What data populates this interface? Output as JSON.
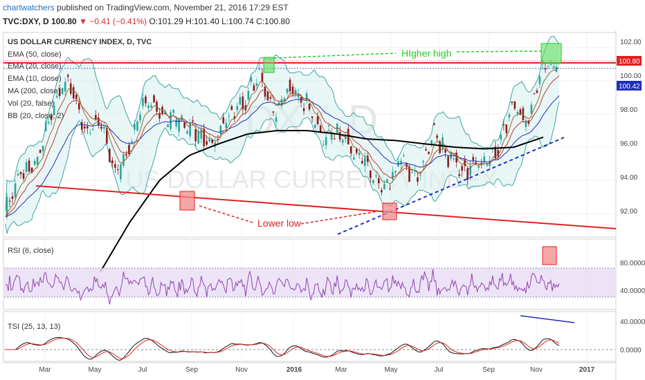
{
  "header": {
    "author": "chartwatchers",
    "published_text": " published on TradingView.com, November 21, 2016 17:29 EST",
    "symbol": "TVC:DXY, D",
    "last": "100.80",
    "down_arrow": "▼",
    "change": "−0.41 (−0.41%)",
    "ohlc": "O:101.29 H:101.40 L:100.74 C:100.80"
  },
  "main_pane": {
    "title": "US DOLLAR CURRENCY INDEX, D, TVC",
    "legend": [
      "EMA (50, close)",
      "EMA (20, close)",
      "EMA (10, close)",
      "MA (200, close)",
      "Vol (20, false)",
      "BB (20, close, 2)"
    ],
    "watermark_big": "DXY, D",
    "watermark_small": "US DOLLAR CURRENCY INDEX",
    "price_labels": [
      "102.00",
      "100.00",
      "98.00",
      "96.00",
      "94.00",
      "92.00"
    ],
    "last_price_tag": "100.80",
    "ema_tag": "100.42",
    "annotation_high": "HIgher high",
    "annotation_low": "Lower low"
  },
  "rsi_pane": {
    "title": "RSI (6, close)",
    "labels": [
      "80.0000",
      "40.0000"
    ]
  },
  "tsi_pane": {
    "title": "TSI (25, 13, 13)",
    "labels": [
      "40.0000",
      "0.0000"
    ]
  },
  "time_axis": [
    "Mar",
    "May",
    "Jul",
    "Sep",
    "Nov",
    "2016",
    "Mar",
    "May",
    "Jul",
    "Sep",
    "Nov",
    "2017"
  ],
  "colors": {
    "up": "#26a69a",
    "down": "#8b1a1a",
    "ma200": "#000000",
    "ema50": "#1f2dbf",
    "ema20": "#c0392b",
    "ema10": "#8e6b3a",
    "bb": "#3aa6a0",
    "rsi": "#8e44ad",
    "annotation_green": "#22cc22",
    "annotation_red": "#e02020",
    "trend_blue": "#1f2dbf"
  },
  "chart_data": [
    {
      "type": "line",
      "title": "US DOLLAR CURRENCY INDEX, D, TVC",
      "y_axis_range": [
        90.6,
        102.9
      ],
      "y_ticks": [
        92,
        94,
        96,
        98,
        100,
        102
      ],
      "x_ticks": [
        "Mar",
        "May",
        "Jul",
        "Sep",
        "Nov",
        "2016",
        "Mar",
        "May",
        "Jul",
        "Sep",
        "Nov",
        "2017"
      ],
      "series": [
        {
          "name": "DXY",
          "values": [
            92.2,
            94.5,
            95.0,
            98.5,
            100.2,
            97.0,
            97.5,
            94.3,
            96.6,
            99.1,
            97.8,
            97.5,
            97.0,
            95.9,
            97.8,
            98.5,
            100.5,
            98.0,
            99.5,
            98.8,
            96.5,
            97.0,
            95.9,
            94.5,
            93.2,
            95.3,
            93.9,
            96.9,
            95.5,
            94.6,
            95.0,
            95.7,
            98.4,
            97.5,
            101.2,
            100.8
          ]
        },
        {
          "name": "MA (200, close)",
          "values": [
            88.5,
            91.5,
            94.0,
            95.5,
            96.2,
            96.8,
            97.0,
            97.0,
            96.8,
            96.5,
            96.4,
            96.2,
            96.0,
            95.9,
            96.0,
            96.6
          ]
        }
      ],
      "last_price": 100.8,
      "ema_value": 100.42,
      "annotations": [
        "HIgher high",
        "Lower low"
      ]
    },
    {
      "type": "line",
      "title": "RSI (6, close)",
      "y_ticks": [
        40,
        80
      ],
      "band": [
        30,
        70
      ]
    },
    {
      "type": "line",
      "title": "TSI (25, 13, 13)",
      "y_ticks": [
        0,
        40
      ]
    }
  ]
}
